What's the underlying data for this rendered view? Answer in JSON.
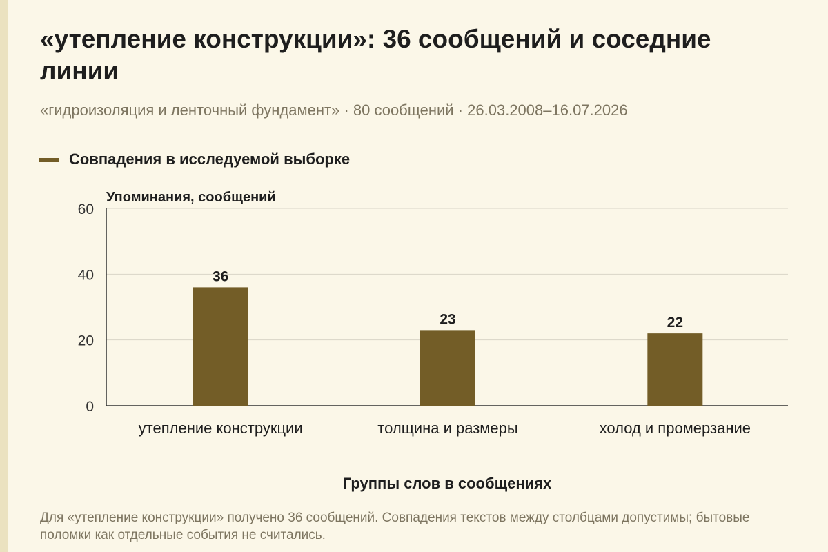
{
  "header": {
    "title": "«утепление конструкции»: 36 сообщений и соседние линии",
    "subtitle": "«гидроизоляция и ленточный фундамент» · 80 сообщений · 26.03.2008–16.07.2026"
  },
  "legend": {
    "label": "Совпадения в исследуемой выборке",
    "color": "#735d27"
  },
  "colors": {
    "bar": "#735d27",
    "grid": "#d9d5c7",
    "axis": "#333333",
    "background": "#fbf7e8"
  },
  "chart_data": {
    "type": "bar",
    "categories": [
      "утепление конструкции",
      "толщина и размеры",
      "холод и промерзание"
    ],
    "series": [
      {
        "name": "Совпадения в исследуемой выборке",
        "values": [
          36,
          23,
          22
        ]
      }
    ],
    "ylabel": "Упоминания, сообщений",
    "xlabel": "Группы слов в сообщениях",
    "ylim": [
      0,
      60
    ],
    "yticks": [
      0,
      20,
      40,
      60
    ],
    "grid": true,
    "data_labels": true,
    "legend_position": "top-left"
  },
  "footnote": "Для «утепление конструкции» получено 36 сообщений. Совпадения текстов между столбцами допустимы; бытовые поломки как отдельные события не считались."
}
